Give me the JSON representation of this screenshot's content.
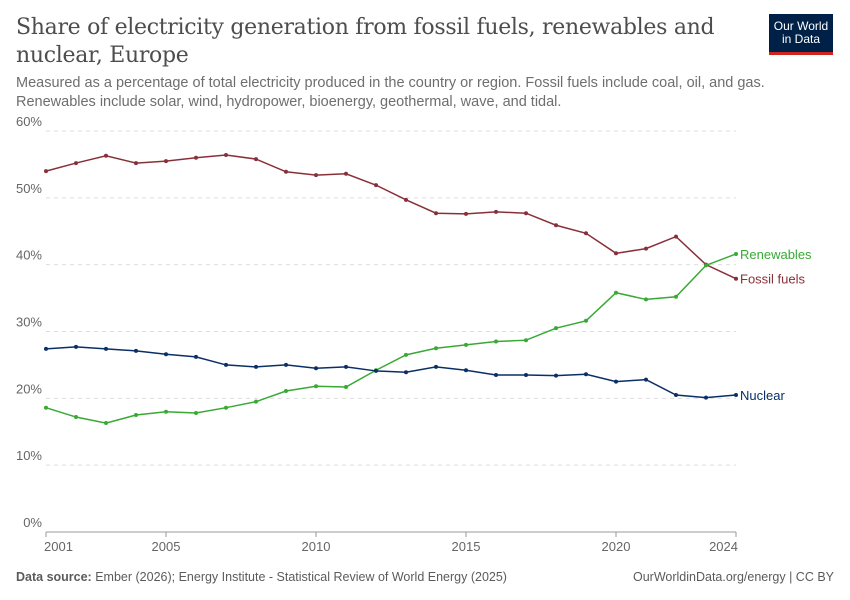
{
  "header": {
    "title": "Share of electricity generation from fossil fuels, renewables and nuclear, Europe",
    "subtitle": "Measured as a percentage of total electricity produced in the country or region. Fossil fuels include coal, oil, and gas. Renewables include solar, wind, hydropower, bioenergy, geothermal, wave, and tidal.",
    "logo_line1": "Our World",
    "logo_line2": "in Data"
  },
  "footer": {
    "source_label": "Data source:",
    "source_text": " Ember (2026); Energy Institute - Statistical Review of World Energy (2025)",
    "right_text": "OurWorldinData.org/energy | CC BY"
  },
  "chart_data": {
    "type": "line",
    "title": "Share of electricity generation from fossil fuels, renewables and nuclear, Europe",
    "x": [
      2001,
      2002,
      2003,
      2004,
      2005,
      2006,
      2007,
      2008,
      2009,
      2010,
      2011,
      2012,
      2013,
      2014,
      2015,
      2016,
      2017,
      2018,
      2019,
      2020,
      2021,
      2022,
      2023,
      2024
    ],
    "xlim": [
      2001,
      2024
    ],
    "ylim": [
      0,
      60
    ],
    "x_ticks": [
      2001,
      2005,
      2010,
      2015,
      2020,
      2024
    ],
    "y_ticks": [
      0,
      10,
      20,
      30,
      40,
      50,
      60
    ],
    "y_tick_labels": [
      "0%",
      "10%",
      "20%",
      "30%",
      "40%",
      "50%",
      "60%"
    ],
    "grid": "horizontal dashed",
    "legend": "line-end labels",
    "series": [
      {
        "name": "Fossil fuels",
        "color": "#883039",
        "values": [
          54.0,
          55.2,
          56.3,
          55.2,
          55.5,
          56.0,
          56.4,
          55.8,
          53.9,
          53.4,
          53.6,
          51.9,
          49.7,
          47.7,
          47.6,
          47.9,
          47.7,
          45.9,
          44.7,
          41.7,
          42.4,
          44.2,
          40.0,
          37.9
        ]
      },
      {
        "name": "Renewables",
        "color": "#38aa34",
        "values": [
          18.6,
          17.2,
          16.3,
          17.5,
          18.0,
          17.8,
          18.6,
          19.5,
          21.1,
          21.8,
          21.7,
          24.2,
          26.5,
          27.5,
          28.0,
          28.5,
          28.7,
          30.5,
          31.6,
          35.8,
          34.8,
          35.2,
          39.9,
          41.6
        ]
      },
      {
        "name": "Nuclear",
        "color": "#0a2f66",
        "values": [
          27.4,
          27.7,
          27.4,
          27.1,
          26.6,
          26.2,
          25.0,
          24.7,
          25.0,
          24.5,
          24.7,
          24.1,
          23.9,
          24.7,
          24.2,
          23.5,
          23.5,
          23.4,
          23.6,
          22.5,
          22.8,
          20.5,
          20.1,
          20.5
        ]
      }
    ]
  }
}
